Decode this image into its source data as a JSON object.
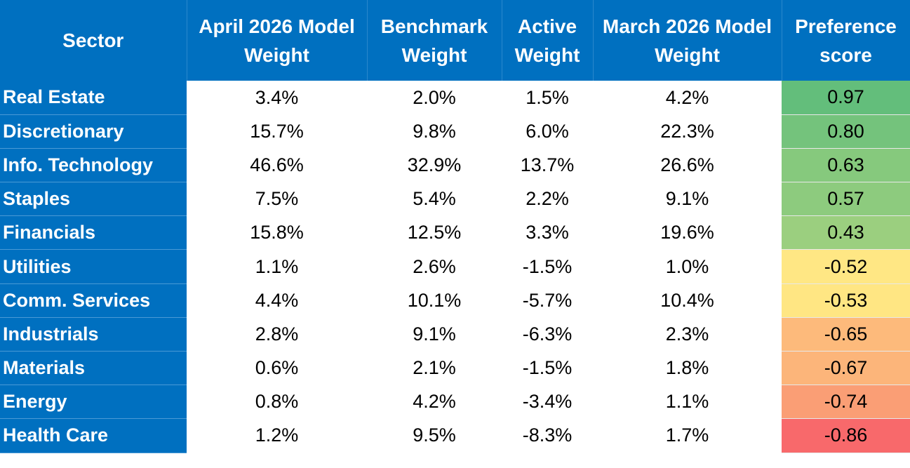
{
  "table": {
    "headers": [
      "Sector",
      "April 2026 Model Weight",
      "Benchmark Weight",
      "Active Weight",
      "March 2026 Model Weight",
      "Preference score"
    ],
    "rows": [
      [
        "Real Estate",
        "3.4%",
        "2.0%",
        "1.5%",
        "4.2%",
        "0.97"
      ],
      [
        "Discretionary",
        "15.7%",
        "9.8%",
        "6.0%",
        "22.3%",
        "0.80"
      ],
      [
        "Info. Technology",
        "46.6%",
        "32.9%",
        "13.7%",
        "26.6%",
        "0.63"
      ],
      [
        "Staples",
        "7.5%",
        "5.4%",
        "2.2%",
        "9.1%",
        "0.57"
      ],
      [
        "Financials",
        "15.8%",
        "12.5%",
        "3.3%",
        "19.6%",
        "0.43"
      ],
      [
        "Utilities",
        "1.1%",
        "2.6%",
        "-1.5%",
        "1.0%",
        "-0.52"
      ],
      [
        "Comm. Services",
        "4.4%",
        "10.1%",
        "-5.7%",
        "10.4%",
        "-0.53"
      ],
      [
        "Industrials",
        "2.8%",
        "9.1%",
        "-6.3%",
        "2.3%",
        "-0.65"
      ],
      [
        "Materials",
        "0.6%",
        "2.1%",
        "-1.5%",
        "1.8%",
        "-0.67"
      ],
      [
        "Energy",
        "0.8%",
        "4.2%",
        "-3.4%",
        "1.1%",
        "-0.74"
      ],
      [
        "Health Care",
        "1.2%",
        "9.5%",
        "-8.3%",
        "1.7%",
        "-0.86"
      ]
    ],
    "score_colors": [
      "#63be7b",
      "#74c37c",
      "#86c97d",
      "#8dcb7e",
      "#9bcf7f",
      "#ffe784",
      "#ffe683",
      "#fdba7b",
      "#fcb57a",
      "#fa9e75",
      "#f8696b"
    ]
  }
}
